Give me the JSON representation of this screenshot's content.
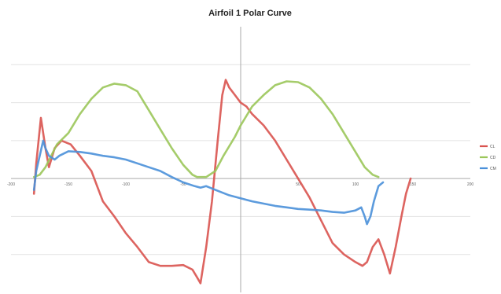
{
  "chart_data": {
    "type": "line",
    "title": "Airfoil 1 Polar Curve",
    "xlabel": "",
    "ylabel": "",
    "xlim": [
      -200,
      200
    ],
    "ylim": [
      -1.5,
      2.0
    ],
    "x_ticks": [
      "-200",
      "-150",
      "-100",
      "-50",
      "0",
      "50",
      "100",
      "150",
      "200"
    ],
    "grid": "horizontal",
    "legend_position": "right",
    "series": [
      {
        "name": "CL",
        "color": "#d9534f",
        "points": [
          [
            -180,
            -0.2
          ],
          [
            -178,
            0.2
          ],
          [
            -174,
            0.8
          ],
          [
            -170,
            0.4
          ],
          [
            -167,
            0.15
          ],
          [
            -162,
            0.4
          ],
          [
            -156,
            0.5
          ],
          [
            -148,
            0.45
          ],
          [
            -140,
            0.3
          ],
          [
            -130,
            0.1
          ],
          [
            -120,
            -0.3
          ],
          [
            -110,
            -0.5
          ],
          [
            -100,
            -0.72
          ],
          [
            -90,
            -0.9
          ],
          [
            -80,
            -1.1
          ],
          [
            -70,
            -1.15
          ],
          [
            -60,
            -1.15
          ],
          [
            -50,
            -1.14
          ],
          [
            -42,
            -1.2
          ],
          [
            -38,
            -1.3
          ],
          [
            -35,
            -1.38
          ],
          [
            -30,
            -0.9
          ],
          [
            -25,
            -0.3
          ],
          [
            -20,
            0.5
          ],
          [
            -16,
            1.1
          ],
          [
            -13,
            1.3
          ],
          [
            -10,
            1.2
          ],
          [
            -5,
            1.1
          ],
          [
            0,
            1.0
          ],
          [
            5,
            0.95
          ],
          [
            10,
            0.85
          ],
          [
            20,
            0.7
          ],
          [
            30,
            0.5
          ],
          [
            40,
            0.25
          ],
          [
            50,
            0.0
          ],
          [
            60,
            -0.25
          ],
          [
            70,
            -0.55
          ],
          [
            80,
            -0.85
          ],
          [
            90,
            -1.0
          ],
          [
            100,
            -1.1
          ],
          [
            106,
            -1.15
          ],
          [
            110,
            -1.1
          ],
          [
            115,
            -0.9
          ],
          [
            120,
            -0.8
          ],
          [
            125,
            -1.0
          ],
          [
            130,
            -1.25
          ],
          [
            135,
            -0.9
          ],
          [
            140,
            -0.5
          ],
          [
            144,
            -0.2
          ],
          [
            148,
            0.0
          ]
        ]
      },
      {
        "name": "CD",
        "color": "#9bc65a",
        "points": [
          [
            -180,
            0.02
          ],
          [
            -175,
            0.05
          ],
          [
            -170,
            0.15
          ],
          [
            -165,
            0.3
          ],
          [
            -160,
            0.45
          ],
          [
            -150,
            0.6
          ],
          [
            -140,
            0.85
          ],
          [
            -130,
            1.05
          ],
          [
            -120,
            1.2
          ],
          [
            -110,
            1.25
          ],
          [
            -100,
            1.23
          ],
          [
            -90,
            1.15
          ],
          [
            -80,
            0.9
          ],
          [
            -70,
            0.65
          ],
          [
            -60,
            0.4
          ],
          [
            -50,
            0.18
          ],
          [
            -42,
            0.05
          ],
          [
            -38,
            0.02
          ],
          [
            -30,
            0.02
          ],
          [
            -22,
            0.1
          ],
          [
            -15,
            0.3
          ],
          [
            -5,
            0.55
          ],
          [
            0,
            0.7
          ],
          [
            10,
            0.95
          ],
          [
            20,
            1.1
          ],
          [
            30,
            1.23
          ],
          [
            40,
            1.28
          ],
          [
            50,
            1.27
          ],
          [
            60,
            1.2
          ],
          [
            70,
            1.05
          ],
          [
            80,
            0.85
          ],
          [
            90,
            0.6
          ],
          [
            100,
            0.35
          ],
          [
            108,
            0.15
          ],
          [
            115,
            0.05
          ],
          [
            120,
            0.02
          ]
        ]
      },
      {
        "name": "CM",
        "color": "#4a90d9",
        "points": [
          [
            -180,
            -0.15
          ],
          [
            -178,
            0.1
          ],
          [
            -175,
            0.3
          ],
          [
            -172,
            0.5
          ],
          [
            -170,
            0.4
          ],
          [
            -167,
            0.3
          ],
          [
            -162,
            0.25
          ],
          [
            -158,
            0.3
          ],
          [
            -150,
            0.36
          ],
          [
            -140,
            0.35
          ],
          [
            -130,
            0.33
          ],
          [
            -120,
            0.3
          ],
          [
            -110,
            0.28
          ],
          [
            -100,
            0.25
          ],
          [
            -90,
            0.2
          ],
          [
            -80,
            0.15
          ],
          [
            -70,
            0.1
          ],
          [
            -60,
            0.02
          ],
          [
            -50,
            -0.05
          ],
          [
            -40,
            -0.1
          ],
          [
            -35,
            -0.12
          ],
          [
            -30,
            -0.1
          ],
          [
            -22,
            -0.15
          ],
          [
            -10,
            -0.22
          ],
          [
            0,
            -0.26
          ],
          [
            10,
            -0.3
          ],
          [
            20,
            -0.33
          ],
          [
            30,
            -0.36
          ],
          [
            40,
            -0.38
          ],
          [
            50,
            -0.4
          ],
          [
            60,
            -0.41
          ],
          [
            70,
            -0.42
          ],
          [
            80,
            -0.44
          ],
          [
            90,
            -0.45
          ],
          [
            100,
            -0.42
          ],
          [
            105,
            -0.38
          ],
          [
            108,
            -0.5
          ],
          [
            110,
            -0.6
          ],
          [
            113,
            -0.5
          ],
          [
            116,
            -0.3
          ],
          [
            120,
            -0.1
          ],
          [
            124,
            -0.05
          ]
        ]
      }
    ]
  }
}
